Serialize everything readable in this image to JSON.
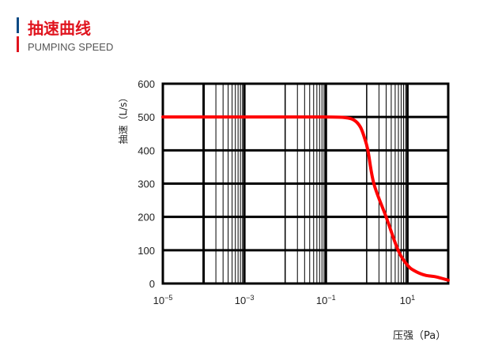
{
  "header": {
    "title": "抽速曲线",
    "subtitle": "PUMPING SPEED",
    "accent_blue": "#0b4a84",
    "accent_red": "#e0141e"
  },
  "chart_data": {
    "type": "line",
    "title": "",
    "xlabel": "压强（Pa）",
    "ylabel": "抽速（L/s）",
    "xscale": "log",
    "xlim": [
      1e-05,
      100
    ],
    "ylim": [
      0,
      600
    ],
    "xticks": [
      {
        "value": -5,
        "label": "10",
        "exp": "−5"
      },
      {
        "value": -3,
        "label": "10",
        "exp": "−3"
      },
      {
        "value": -1,
        "label": "10",
        "exp": "−1"
      },
      {
        "value": 1,
        "label": "10",
        "exp": "1"
      }
    ],
    "yticks": [
      "0",
      "100",
      "200",
      "300",
      "400",
      "500",
      "600"
    ],
    "grid": true,
    "series": [
      {
        "color": "#ff0000",
        "x": [
          1e-05,
          0.001,
          0.1,
          0.3,
          0.5,
          0.7,
          0.87,
          1.07,
          1.5,
          3,
          5.9,
          10,
          15,
          27,
          50,
          100
        ],
        "y": [
          500,
          500,
          500,
          498,
          490,
          470,
          440,
          400,
          300,
          200,
          100,
          55,
          38,
          25,
          20,
          10
        ]
      }
    ]
  }
}
